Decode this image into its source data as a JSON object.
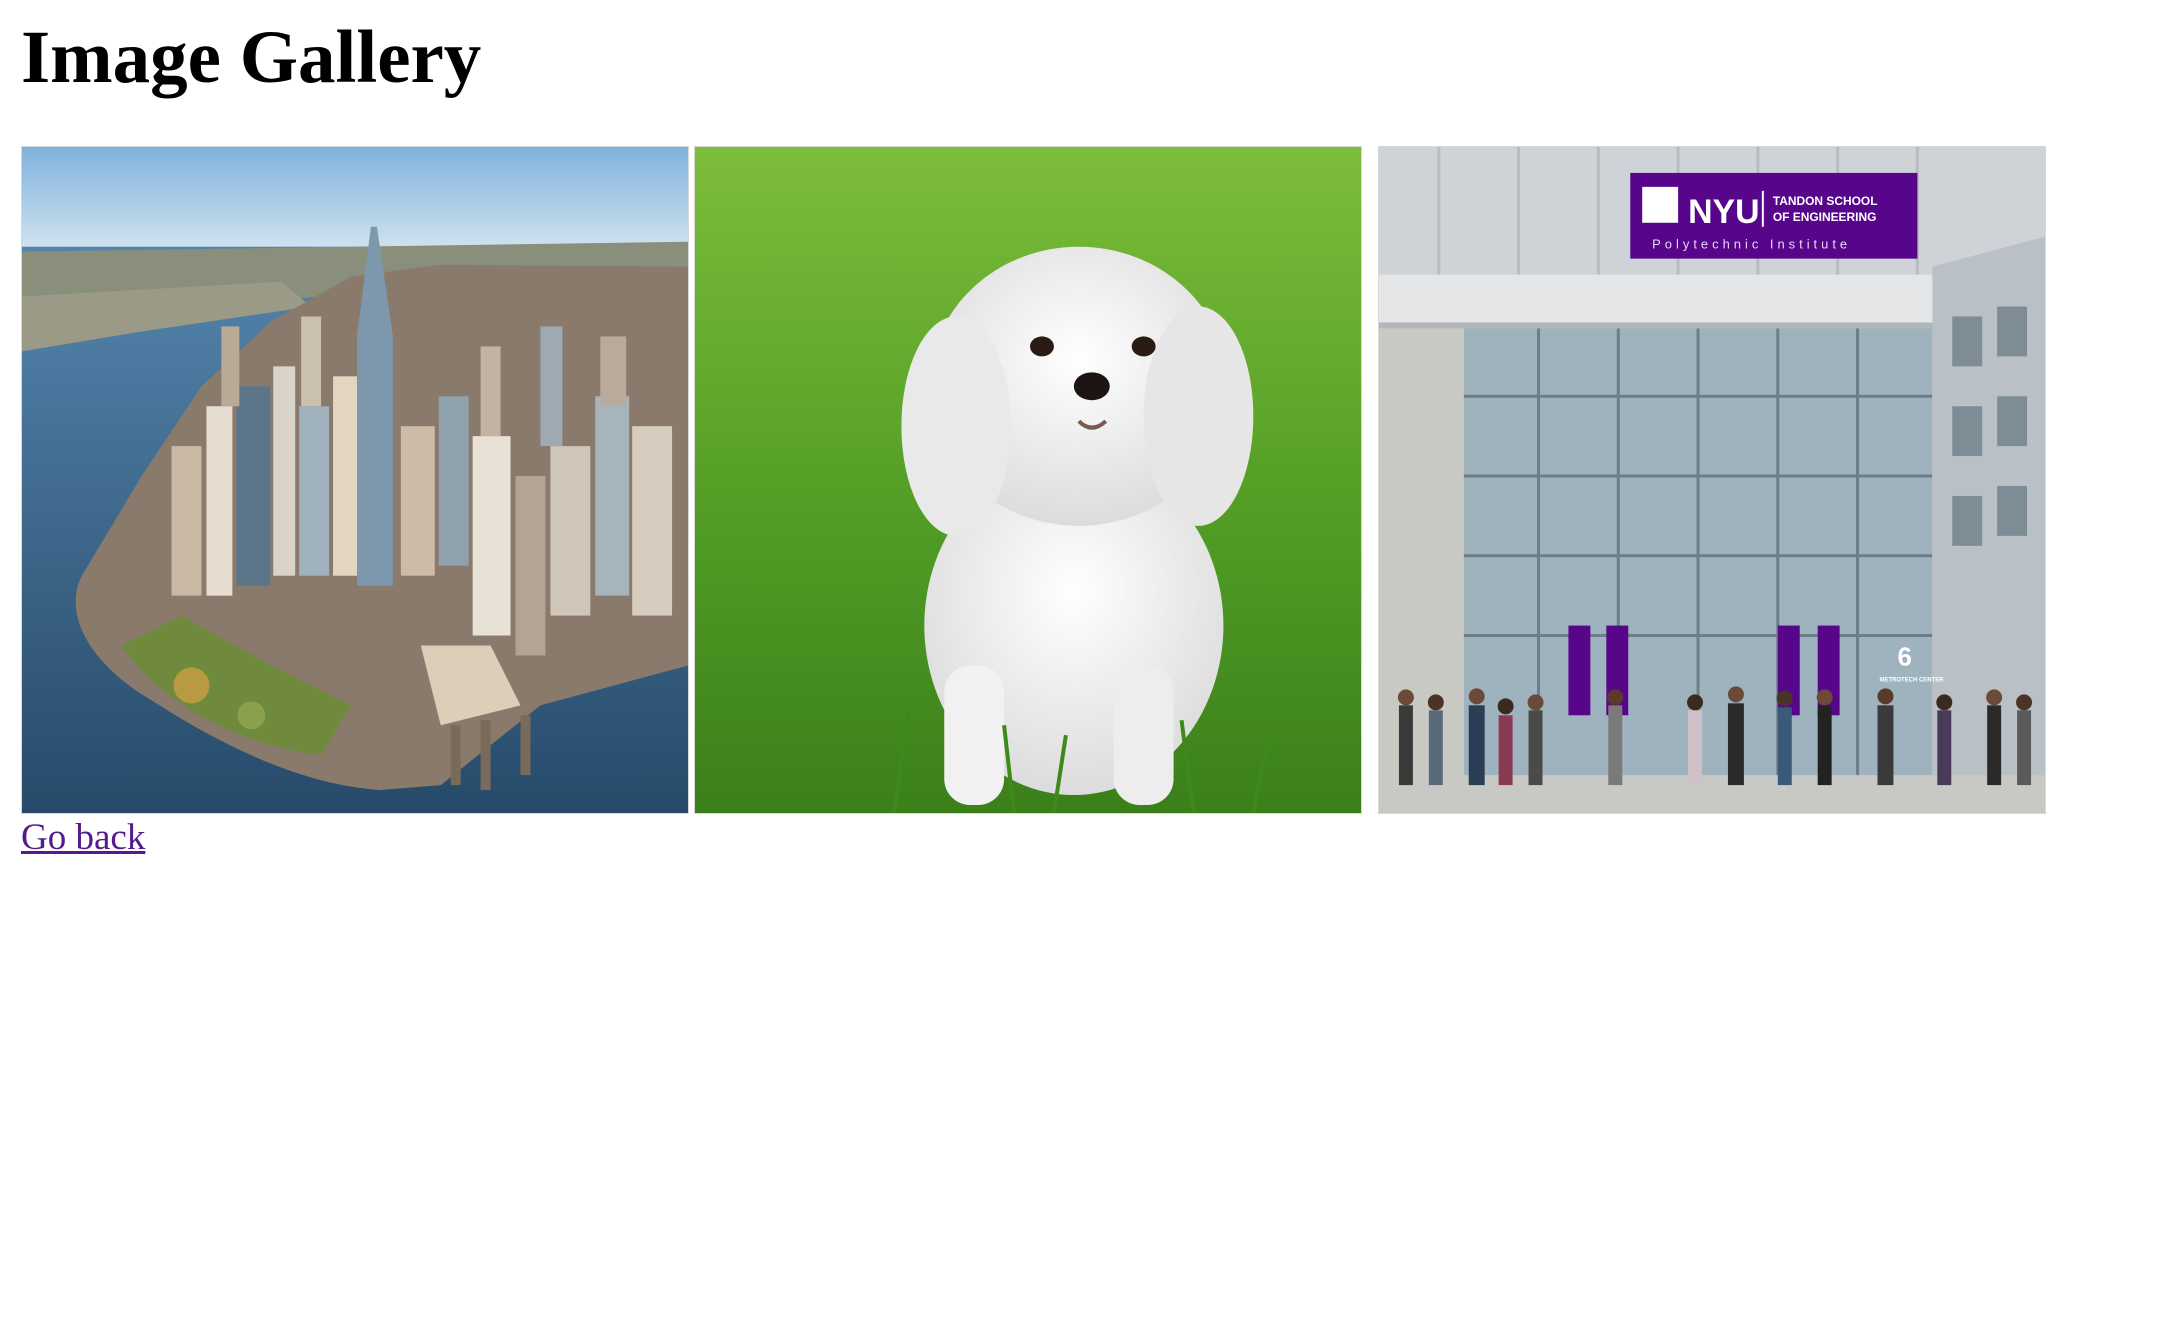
{
  "page": {
    "title": "Image Gallery",
    "back_link": "Go back",
    "link_color": "#551a8b"
  },
  "gallery": {
    "images": [
      {
        "subject": "aerial view of lower Manhattan skyline"
      },
      {
        "subject": "small white fluffy dog sitting in grass"
      },
      {
        "subject": "glass building entrance with crowd of students",
        "sign_main": "NYU",
        "sign_school": "TANDON SCHOOL OF ENGINEERING",
        "sign_school_line1": "TANDON SCHOOL",
        "sign_school_line2": "OF ENGINEERING",
        "sign_sub": "Polytechnic Institute",
        "building_number": "6",
        "building_label": "METROTECH CENTER",
        "sign_color": "#57068c"
      }
    ]
  }
}
